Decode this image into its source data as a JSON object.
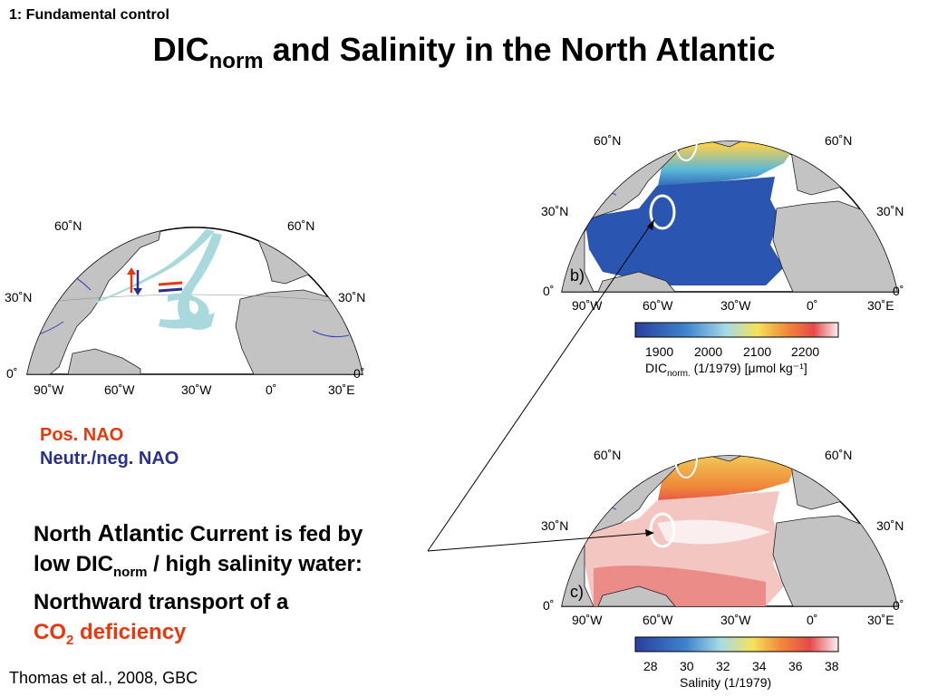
{
  "slide": {
    "label": "1: Fundamental control",
    "title_main": "DIC",
    "title_sub": "norm",
    "title_rest": " and Salinity in the North Atlantic",
    "citation": "Thomas et al., 2008, GBC"
  },
  "legend": {
    "pos": "Pos. NAO",
    "neg": "Neutr./neg. NAO"
  },
  "statement": {
    "line1a": "North ",
    "line1b": "Atlantic",
    "line1c": " Current is fed by",
    "line2a": "low DIC",
    "line2sub": "norm",
    "line2b": " / high salinity water:",
    "line3": "Northward transport of a",
    "line4a": "CO",
    "line4sub": "2",
    "line4b": " deficiency"
  },
  "maps": {
    "lat_labels": [
      "60˚N",
      "30˚N",
      "0˚"
    ],
    "lon_labels": [
      "90˚W",
      "60˚W",
      "30˚W",
      "0˚",
      "30˚E"
    ],
    "panel_b": "b)",
    "panel_c": "c)"
  },
  "colorbars": {
    "dic": {
      "ticks": [
        "1900",
        "2000",
        "2100",
        "2200"
      ],
      "label_main": "DIC",
      "label_sub": "norm.",
      "label_rest": " (1/1979) [μmol kg⁻¹]"
    },
    "salinity": {
      "ticks": [
        "28",
        "30",
        "32",
        "34",
        "36",
        "38"
      ],
      "label": "Salinity (1/1979)"
    }
  },
  "colors": {
    "accent_red": "#e8380d",
    "accent_blue": "#2a3090",
    "land": "#c3c3c3",
    "current": "#a9d9dc"
  }
}
